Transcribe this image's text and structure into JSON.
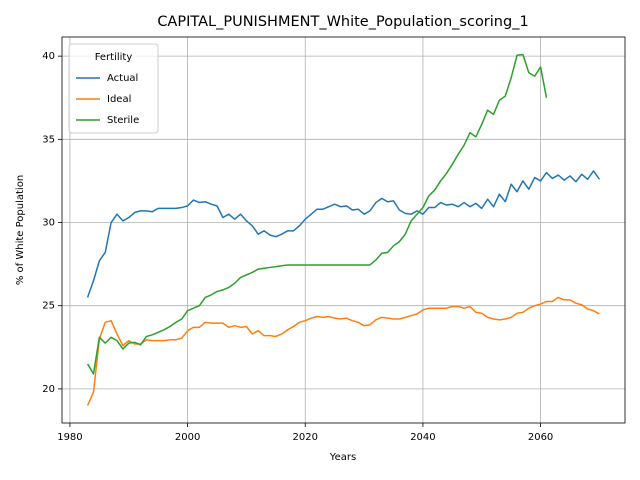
{
  "chart_data": {
    "type": "line",
    "title": "CAPITAL_PUNISHMENT_White_Population_scoring_1",
    "x_label": "Years",
    "y_label": "% of White Population",
    "legend_title": "Fertility",
    "legend": "upper left",
    "grid": true,
    "xlim": [
      1978.65,
      2074.35
    ],
    "ylim": [
      17.95,
      41.15
    ],
    "xticks": [
      1980,
      2000,
      2020,
      2040,
      2060
    ],
    "yticks": [
      20,
      25,
      30,
      35,
      40
    ],
    "x": [
      1983,
      1984,
      1985,
      1986,
      1987,
      1988,
      1989,
      1990,
      1991,
      1992,
      1993,
      1994,
      1995,
      1996,
      1997,
      1998,
      1999,
      2000,
      2001,
      2002,
      2003,
      2004,
      2005,
      2006,
      2007,
      2008,
      2009,
      2010,
      2011,
      2012,
      2013,
      2014,
      2015,
      2016,
      2017,
      2018,
      2019,
      2020,
      2021,
      2022,
      2023,
      2024,
      2025,
      2026,
      2027,
      2028,
      2029,
      2030,
      2031,
      2032,
      2033,
      2034,
      2035,
      2036,
      2037,
      2038,
      2039,
      2040,
      2041,
      2042,
      2043,
      2044,
      2045,
      2046,
      2047,
      2048,
      2049,
      2050,
      2051,
      2052,
      2053,
      2054,
      2055,
      2056,
      2057,
      2058,
      2059,
      2060,
      2061,
      2062,
      2063,
      2064,
      2065,
      2066,
      2067,
      2068,
      2069,
      2070
    ],
    "series": [
      {
        "name": "Actual",
        "color": "#1f77b4",
        "values": [
          25.5,
          26.5,
          27.7,
          28.2,
          30.0,
          30.5,
          30.1,
          30.3,
          30.6,
          30.7,
          30.7,
          30.65,
          30.85,
          30.85,
          30.85,
          30.85,
          30.9,
          31.0,
          31.35,
          31.2,
          31.25,
          31.1,
          31.0,
          30.3,
          30.5,
          30.2,
          30.5,
          30.1,
          29.8,
          29.3,
          29.5,
          29.25,
          29.15,
          29.3,
          29.5,
          29.5,
          29.8,
          30.2,
          30.5,
          30.8,
          30.8,
          30.95,
          31.1,
          30.95,
          31.0,
          30.75,
          30.8,
          30.5,
          30.7,
          31.2,
          31.45,
          31.25,
          31.3,
          30.75,
          30.55,
          30.5,
          30.7,
          30.5,
          30.9,
          30.9,
          31.2,
          31.05,
          31.1,
          30.95,
          31.2,
          30.95,
          31.15,
          30.85,
          31.4,
          30.95,
          31.7,
          31.25,
          32.3,
          31.85,
          32.5,
          32.0,
          32.7,
          32.5,
          33.0,
          32.65,
          32.85,
          32.55,
          32.8,
          32.45,
          32.9,
          32.6,
          33.1,
          32.6
        ]
      },
      {
        "name": "Ideal",
        "color": "#ff7f0e",
        "values": [
          19.0,
          19.8,
          23.0,
          24.0,
          24.1,
          23.3,
          22.6,
          22.9,
          22.7,
          22.7,
          22.95,
          22.9,
          22.9,
          22.9,
          22.95,
          22.95,
          23.05,
          23.5,
          23.7,
          23.7,
          24.0,
          23.95,
          23.95,
          23.95,
          23.7,
          23.8,
          23.7,
          23.75,
          23.3,
          23.5,
          23.2,
          23.2,
          23.15,
          23.3,
          23.55,
          23.75,
          24.0,
          24.1,
          24.25,
          24.35,
          24.3,
          24.35,
          24.25,
          24.2,
          24.25,
          24.1,
          24.0,
          23.8,
          23.85,
          24.15,
          24.3,
          24.25,
          24.2,
          24.2,
          24.3,
          24.4,
          24.5,
          24.75,
          24.85,
          24.85,
          24.85,
          24.85,
          24.95,
          24.95,
          24.85,
          24.95,
          24.6,
          24.55,
          24.3,
          24.2,
          24.15,
          24.2,
          24.3,
          24.55,
          24.6,
          24.85,
          25.0,
          25.1,
          25.25,
          25.25,
          25.5,
          25.35,
          25.35,
          25.15,
          25.05,
          24.8,
          24.7,
          24.5
        ]
      },
      {
        "name": "Sterile",
        "color": "#2ca02c",
        "values": [
          21.5,
          20.9,
          23.1,
          22.75,
          23.1,
          22.9,
          22.4,
          22.75,
          22.8,
          22.65,
          23.15,
          23.25,
          23.4,
          23.55,
          23.75,
          24.0,
          24.2,
          24.7,
          24.85,
          25.0,
          25.5,
          25.65,
          25.85,
          25.95,
          26.1,
          26.35,
          26.7,
          26.85,
          27.0,
          27.2,
          27.25,
          27.3,
          27.35,
          27.4,
          27.45,
          27.45,
          27.45,
          27.45,
          27.45,
          27.45,
          27.45,
          27.45,
          27.45,
          27.45,
          27.45,
          27.45,
          27.45,
          27.45,
          27.45,
          27.75,
          28.15,
          28.2,
          28.6,
          28.85,
          29.3,
          30.1,
          30.5,
          30.9,
          31.6,
          31.95,
          32.5,
          32.95,
          33.5,
          34.1,
          34.65,
          35.4,
          35.15,
          35.9,
          36.75,
          36.5,
          37.35,
          37.6,
          38.7,
          40.05,
          40.1,
          39.0,
          38.8,
          39.35,
          37.5,
          null,
          null,
          null,
          null,
          null,
          null,
          null,
          null,
          null
        ]
      }
    ]
  }
}
